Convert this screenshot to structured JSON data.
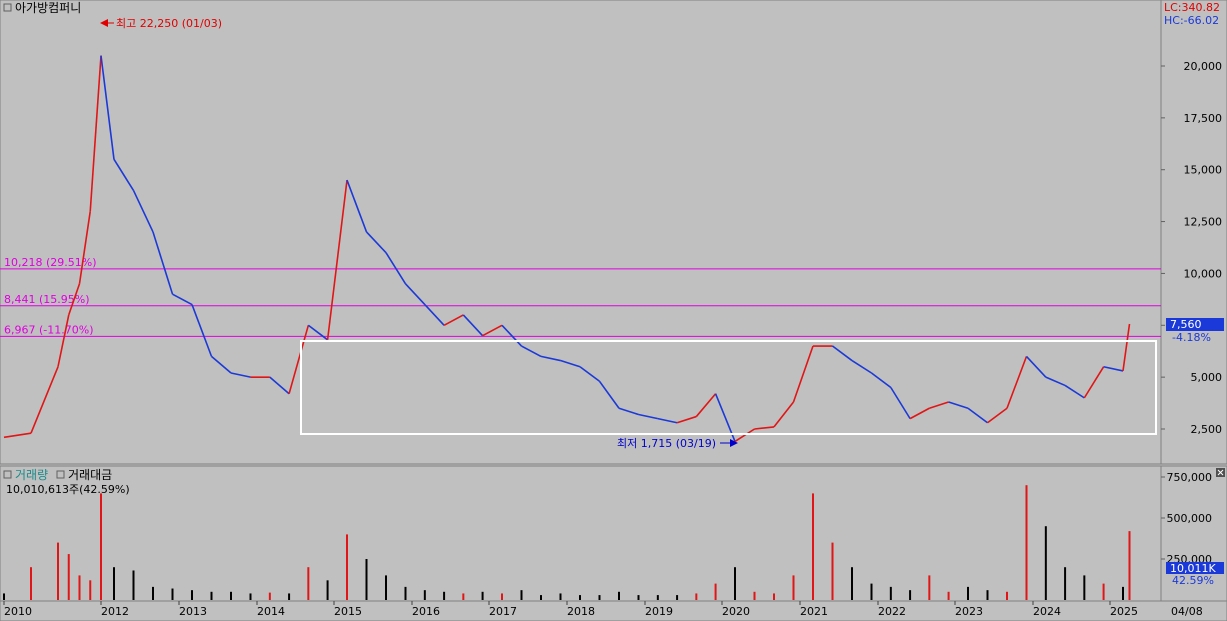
{
  "price_panel": {
    "title": "아가방컴퍼니",
    "lc_label": "LC:340.82",
    "hc_label": "HC:-66.02",
    "max_annotation": "최고 22,250 (01/03)",
    "min_annotation": "최저 1,715 (03/19)",
    "last_price": "7,560",
    "last_change": "-4.18%",
    "ylabels": [
      "20,000",
      "17,500",
      "15,000",
      "12,500",
      "10,000",
      "7,500",
      "5,000",
      "2,500"
    ]
  },
  "fib_levels": [
    {
      "label": "10,218 (29.51%)",
      "value": 10218
    },
    {
      "label": "8,441 (15.95%)",
      "value": 8441
    },
    {
      "label": "6,967 (-11.70%)",
      "value": 6967
    }
  ],
  "volume_panel": {
    "tab_volume": "거래량",
    "tab_amount": "거래대금",
    "info": "10,010,613주(42.59%)",
    "last_volume": "10,011K",
    "last_pct": "42.59%",
    "ylabels": [
      "750,000",
      "500,000",
      "250,000"
    ]
  },
  "xaxis": {
    "years": [
      "2010",
      "2012",
      "2013",
      "2014",
      "2015",
      "2016",
      "2017",
      "2018",
      "2019",
      "2020",
      "2021",
      "2022",
      "2023",
      "2024",
      "2025"
    ],
    "date_label": "04/08"
  },
  "colors": {
    "up": "#e11515",
    "down": "#1b39d8",
    "fib": "#e000e0",
    "annot_high": "#e00000",
    "annot_low": "#0000cc",
    "box": "#ffffff"
  },
  "chart_data": {
    "type": "line",
    "title": "아가방컴퍼니",
    "x": [
      "2010-01",
      "2010-07",
      "2011-01",
      "2011-04",
      "2011-07",
      "2011-10",
      "2012-01",
      "2012-03",
      "2012-06",
      "2012-09",
      "2012-12",
      "2013-03",
      "2013-06",
      "2013-09",
      "2013-12",
      "2014-03",
      "2014-06",
      "2014-09",
      "2014-12",
      "2015-03",
      "2015-06",
      "2015-09",
      "2015-12",
      "2016-03",
      "2016-06",
      "2016-09",
      "2016-12",
      "2017-03",
      "2017-06",
      "2017-09",
      "2017-12",
      "2018-03",
      "2018-06",
      "2018-09",
      "2018-12",
      "2019-03",
      "2019-06",
      "2019-09",
      "2019-12",
      "2020-03",
      "2020-06",
      "2020-09",
      "2020-12",
      "2021-03",
      "2021-06",
      "2021-09",
      "2021-12",
      "2022-03",
      "2022-06",
      "2022-09",
      "2022-12",
      "2023-03",
      "2023-06",
      "2023-09",
      "2023-12",
      "2024-03",
      "2024-06",
      "2024-09",
      "2024-12",
      "2025-03",
      "2025-04"
    ],
    "series": [
      {
        "values": [
          2100,
          2300,
          5500,
          8000,
          9500,
          13000,
          20500,
          15500,
          14000,
          12000,
          9000,
          8500,
          6000,
          5200,
          5000,
          5000,
          4200,
          7500,
          6800,
          14500,
          12000,
          11000,
          9500,
          8500,
          7500,
          8000,
          7000,
          7500,
          6500,
          6000,
          5800,
          5500,
          4800,
          3500,
          3200,
          3000,
          2800,
          3100,
          4200,
          1900,
          2500,
          2600,
          3800,
          6500,
          6500,
          5800,
          5200,
          4500,
          3000,
          3500,
          3800,
          3500,
          2800,
          3500,
          6000,
          5000,
          4600,
          4000,
          5500,
          5300,
          7560
        ]
      },
      {
        "name": "거래량",
        "values": [
          40000,
          200000,
          350000,
          280000,
          150000,
          120000,
          650000,
          200000,
          180000,
          80000,
          70000,
          60000,
          50000,
          50000,
          40000,
          45000,
          40000,
          200000,
          120000,
          400000,
          250000,
          150000,
          80000,
          60000,
          50000,
          40000,
          50000,
          40000,
          60000,
          30000,
          40000,
          30000,
          30000,
          50000,
          30000,
          30000,
          30000,
          40000,
          100000,
          200000,
          50000,
          40000,
          150000,
          650000,
          350000,
          200000,
          100000,
          80000,
          60000,
          150000,
          50000,
          80000,
          60000,
          50000,
          700000,
          450000,
          200000,
          150000,
          100000,
          80000,
          420000
        ]
      }
    ],
    "yrange_price": [
      1500,
      22500
    ],
    "yrange_volume": [
      0,
      750000
    ],
    "max": {
      "value": 22250,
      "date": "01/03"
    },
    "min": {
      "value": 1715,
      "date": "03/19"
    }
  }
}
